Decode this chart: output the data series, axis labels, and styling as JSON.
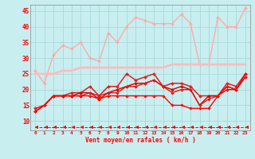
{
  "background_color": "#c8eef0",
  "grid_color": "#a8d8da",
  "xlabel": "Vent moyen/en rafales ( km/h )",
  "x_ticks": [
    0,
    1,
    2,
    3,
    4,
    5,
    6,
    7,
    8,
    9,
    10,
    11,
    12,
    13,
    14,
    15,
    16,
    17,
    18,
    19,
    20,
    21,
    22,
    23
  ],
  "ylim": [
    7,
    47
  ],
  "xlim": [
    -0.5,
    23.5
  ],
  "y_ticks": [
    10,
    15,
    20,
    25,
    30,
    35,
    40,
    45
  ],
  "series": [
    {
      "label": "rafales_noisy",
      "x": [
        0,
        1,
        2,
        3,
        4,
        5,
        6,
        7,
        8,
        9,
        10,
        11,
        12,
        13,
        14,
        15,
        16,
        17,
        18,
        19,
        20,
        21,
        22,
        23
      ],
      "y": [
        26,
        22,
        31,
        34,
        33,
        35,
        30,
        29,
        38,
        35,
        40,
        43,
        42,
        41,
        41,
        41,
        44,
        41,
        28,
        28,
        43,
        40,
        40,
        46
      ],
      "color": "#ffaaaa",
      "linewidth": 1.0,
      "marker": "D",
      "markersize": 2.0,
      "linestyle": "solid"
    },
    {
      "label": "trend_pink",
      "x": [
        0,
        1,
        2,
        3,
        4,
        5,
        6,
        7,
        8,
        9,
        10,
        11,
        12,
        13,
        14,
        15,
        16,
        17,
        18,
        19,
        20,
        21,
        22,
        23
      ],
      "y": [
        25,
        25,
        25,
        26,
        26,
        27,
        27,
        27,
        27,
        27,
        27,
        27,
        27,
        27,
        27,
        28,
        28,
        28,
        28,
        28,
        28,
        28,
        28,
        28
      ],
      "color": "#ffbbbb",
      "linewidth": 2.0,
      "marker": null,
      "markersize": 0,
      "linestyle": "solid"
    },
    {
      "label": "vent_upper",
      "x": [
        0,
        1,
        2,
        3,
        4,
        5,
        6,
        7,
        8,
        9,
        10,
        11,
        12,
        13,
        14,
        15,
        16,
        17,
        18,
        19,
        20,
        21,
        22,
        23
      ],
      "y": [
        14,
        15,
        18,
        18,
        19,
        19,
        21,
        18,
        21,
        21,
        25,
        23,
        24,
        25,
        21,
        22,
        22,
        21,
        18,
        18,
        18,
        22,
        21,
        25
      ],
      "color": "#dd2222",
      "linewidth": 1.1,
      "marker": "D",
      "markersize": 2.0,
      "linestyle": "solid"
    },
    {
      "label": "vent_mid1",
      "x": [
        0,
        1,
        2,
        3,
        4,
        5,
        6,
        7,
        8,
        9,
        10,
        11,
        12,
        13,
        14,
        15,
        16,
        17,
        18,
        19,
        20,
        21,
        22,
        23
      ],
      "y": [
        13,
        15,
        18,
        18,
        18,
        19,
        19,
        17,
        19,
        20,
        21,
        22,
        22,
        23,
        21,
        20,
        21,
        20,
        15,
        18,
        18,
        21,
        20,
        24
      ],
      "color": "#cc0000",
      "linewidth": 1.0,
      "marker": "D",
      "markersize": 1.8,
      "linestyle": "solid"
    },
    {
      "label": "vent_mid2",
      "x": [
        0,
        1,
        2,
        3,
        4,
        5,
        6,
        7,
        8,
        9,
        10,
        11,
        12,
        13,
        14,
        15,
        16,
        17,
        18,
        19,
        20,
        21,
        22,
        23
      ],
      "y": [
        13,
        15,
        18,
        18,
        18,
        18,
        19,
        18,
        19,
        19,
        21,
        21,
        22,
        23,
        21,
        19,
        20,
        20,
        15,
        17,
        18,
        21,
        20,
        24
      ],
      "color": "#ee1111",
      "linewidth": 1.0,
      "marker": "D",
      "markersize": 1.8,
      "linestyle": "solid"
    },
    {
      "label": "vent_low",
      "x": [
        0,
        1,
        2,
        3,
        4,
        5,
        6,
        7,
        8,
        9,
        10,
        11,
        12,
        13,
        14,
        15,
        16,
        17,
        18,
        19,
        20,
        21,
        22,
        23
      ],
      "y": [
        13,
        15,
        18,
        18,
        18,
        18,
        18,
        17,
        18,
        18,
        18,
        18,
        18,
        18,
        18,
        15,
        15,
        14,
        14,
        14,
        18,
        20,
        20,
        25
      ],
      "color": "#ff0000",
      "linewidth": 1.0,
      "marker": "D",
      "markersize": 1.8,
      "linestyle": "solid"
    },
    {
      "label": "arrows_dashed",
      "x": [
        0,
        1,
        2,
        3,
        4,
        5,
        6,
        7,
        8,
        9,
        10,
        11,
        12,
        13,
        14,
        15,
        16,
        17,
        18,
        19,
        20,
        21,
        22,
        23
      ],
      "y": [
        8,
        8,
        8,
        8,
        8,
        8,
        8,
        8,
        8,
        8,
        8,
        8,
        8,
        8,
        8,
        8,
        8,
        8,
        8,
        8,
        8,
        8,
        8,
        8
      ],
      "color": "#ff0000",
      "linewidth": 0.7,
      "marker": 4,
      "markersize": 3.5,
      "linestyle": "--"
    }
  ]
}
